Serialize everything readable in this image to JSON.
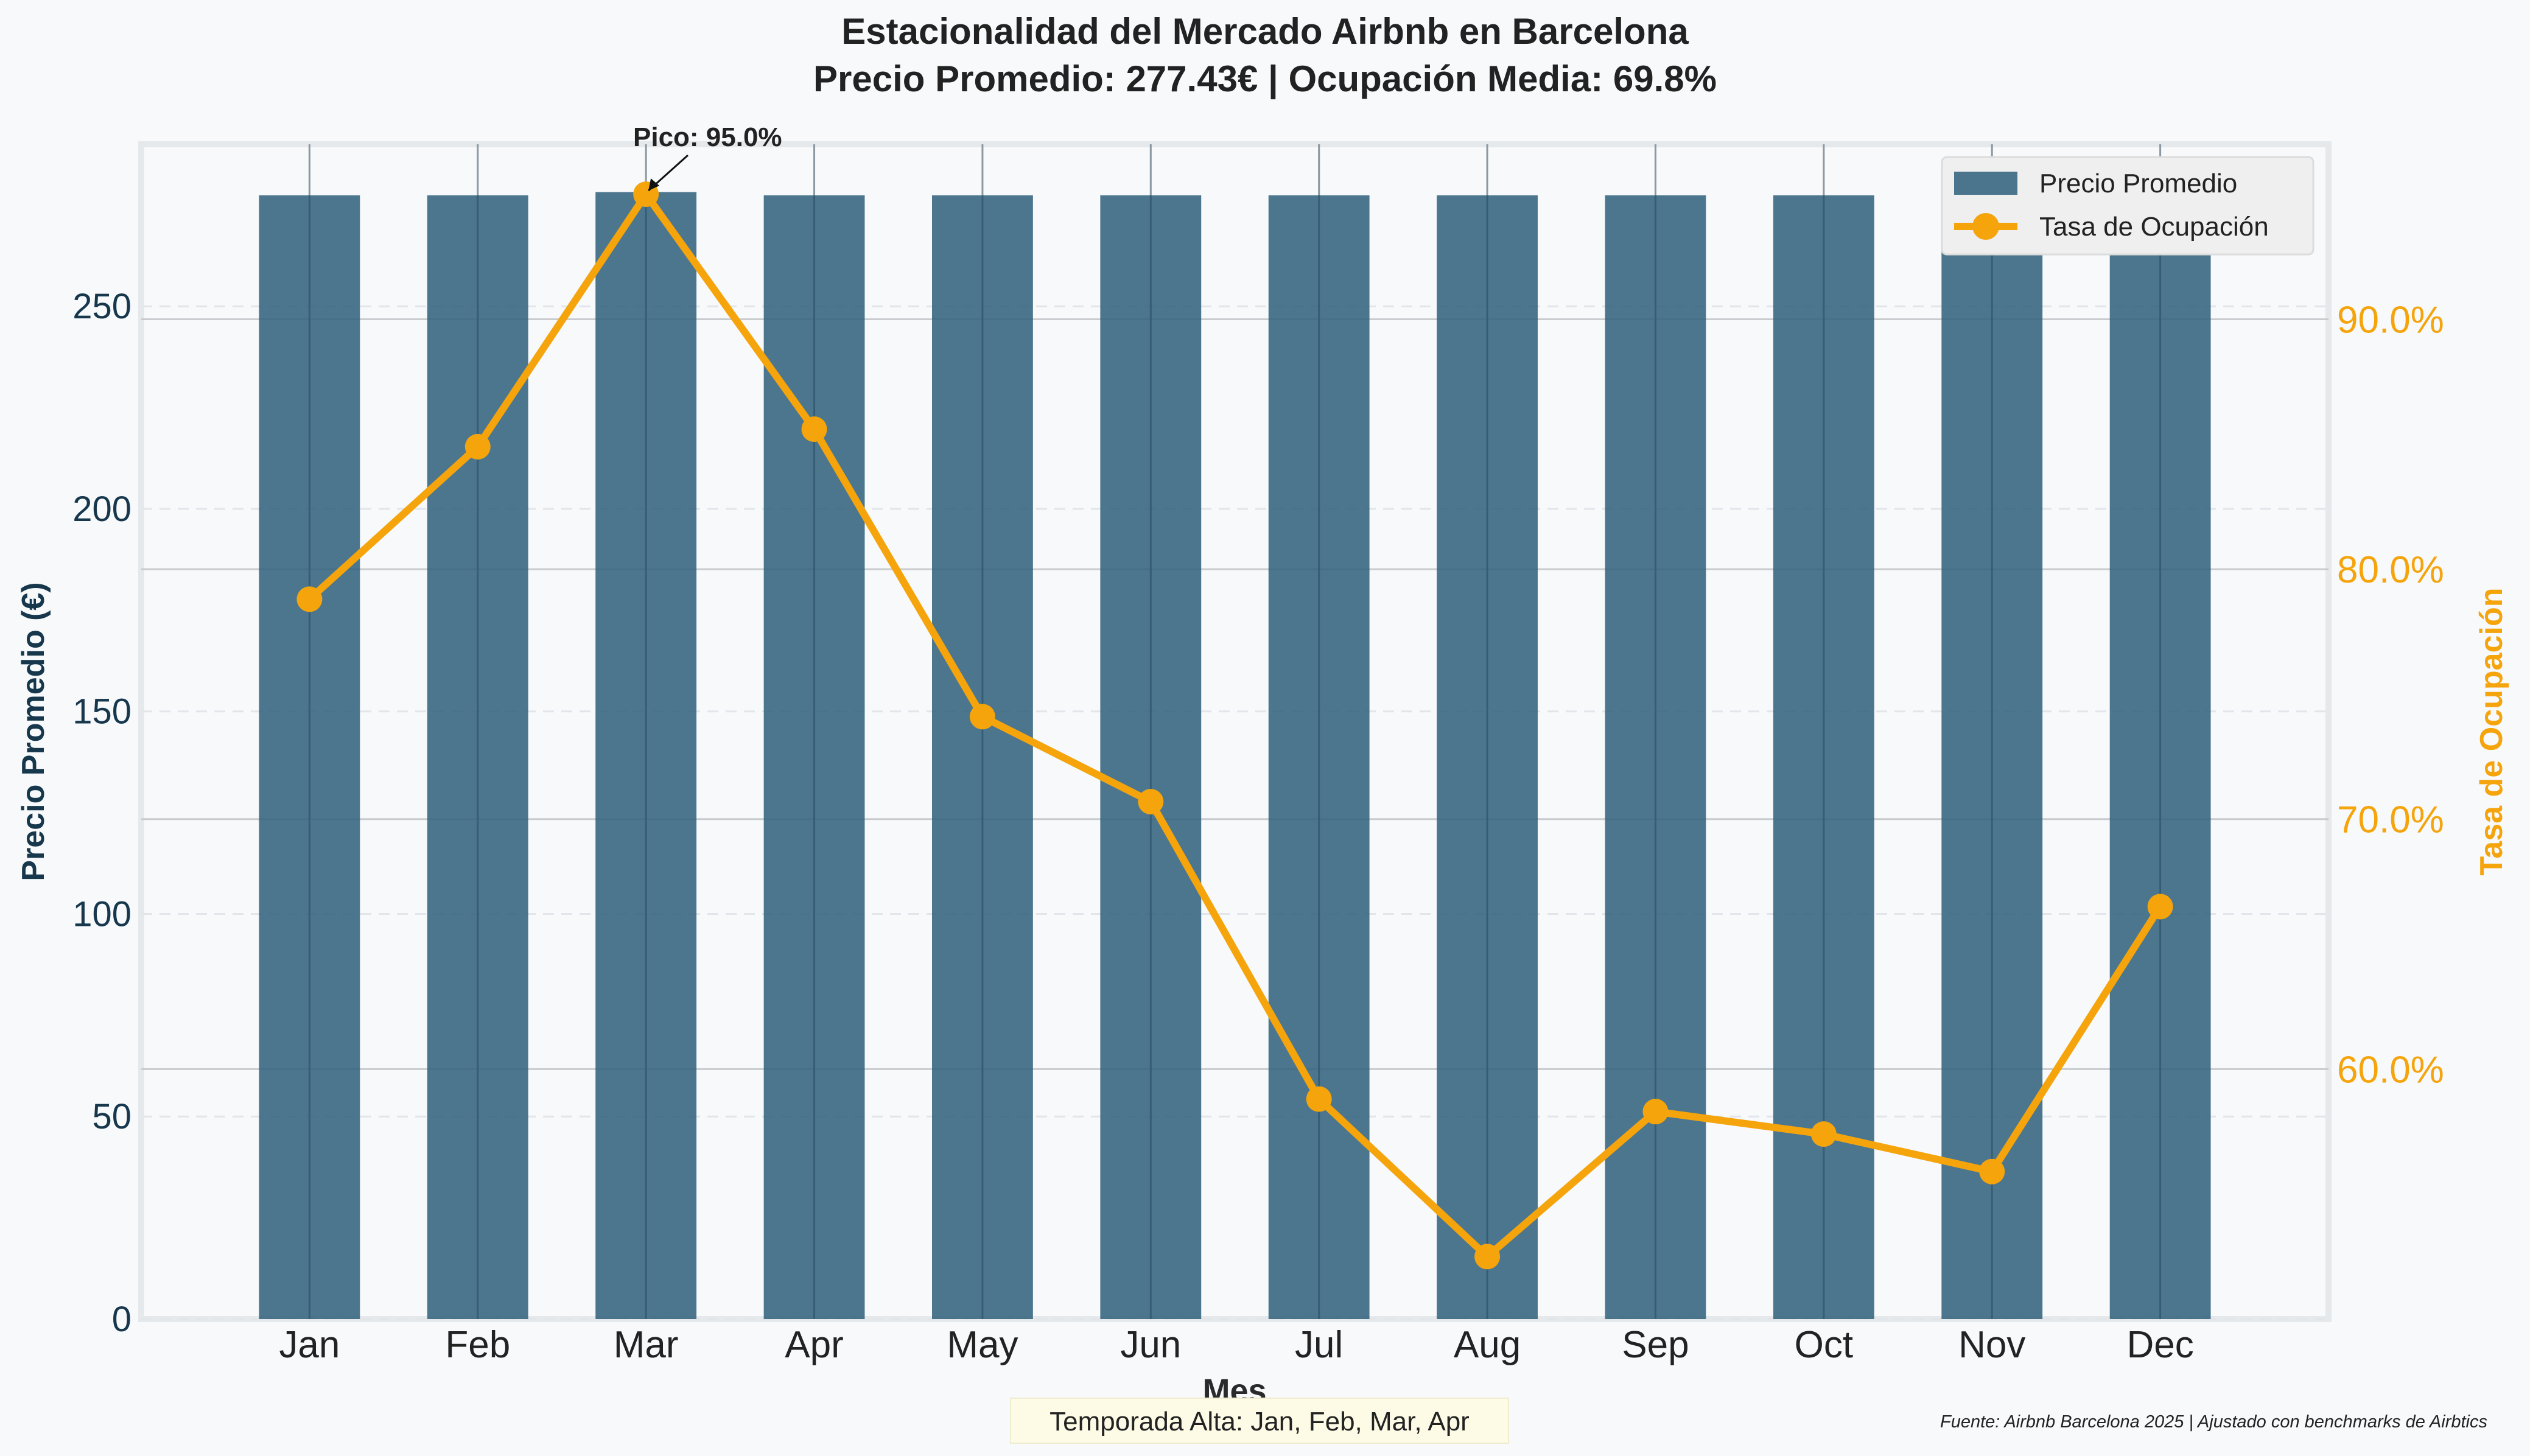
{
  "chart_data": {
    "type": "bar+line",
    "title": "Estacionalidad del Mercado Airbnb en Barcelona",
    "subtitle": "Precio Promedio: 277.43€ | Ocupación Media: 69.8%",
    "xlabel": "Mes",
    "ylabel_left": "Precio Promedio (€)",
    "ylabel_right": "Tasa de Ocupación",
    "categories": [
      "Jan",
      "Feb",
      "Mar",
      "Apr",
      "May",
      "Jun",
      "Jul",
      "Aug",
      "Sep",
      "Oct",
      "Nov",
      "Dec"
    ],
    "ylim_left": [
      0,
      290
    ],
    "yticks_left": [
      "0",
      "50",
      "100",
      "150",
      "200",
      "250"
    ],
    "ylim_right": [
      50.0,
      97.0
    ],
    "yticks_right": [
      "60.0%",
      "70.0%",
      "80.0%",
      "90.0%"
    ],
    "series": [
      {
        "name": "Precio Promedio",
        "kind": "bar",
        "axis": "left",
        "color": "#2e5f7a",
        "values": [
          277.4,
          277.4,
          278.2,
          277.4,
          277.4,
          277.4,
          277.4,
          277.4,
          277.4,
          277.4,
          277.4,
          277.4
        ]
      },
      {
        "name": "Tasa de Ocupación",
        "kind": "line",
        "axis": "right",
        "color": "#f5a40c",
        "values": [
          78.8,
          84.9,
          95.0,
          85.6,
          74.1,
          70.7,
          58.8,
          52.5,
          58.3,
          57.4,
          55.9,
          66.5
        ]
      }
    ],
    "annotation": {
      "text": "Pico: 95.0%",
      "category": "Mar"
    },
    "legend": {
      "position": "top-right",
      "entries": [
        "Precio Promedio",
        "Tasa de Ocupación"
      ]
    },
    "grid": true
  },
  "footer": {
    "season_note": "Temporada Alta: Jan, Feb, Mar, Apr",
    "source": "Fuente: Airbnb Barcelona 2025 | Ajustado con benchmarks de Airbtics"
  },
  "colors": {
    "bar": "#2e5f7a",
    "line": "#f5a40c",
    "left_axis_text": "#17374d",
    "right_axis_text": "#f5a40c",
    "background": "#f7f9fb"
  }
}
